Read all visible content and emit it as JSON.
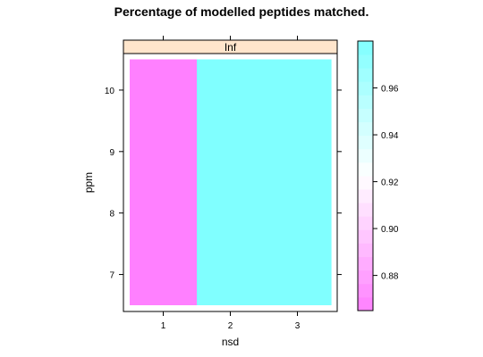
{
  "chart_data": {
    "type": "heatmap",
    "title": "Percentage of modelled peptides matched.",
    "panel_strip": "Inf",
    "xlabel": "nsd",
    "ylabel": "ppm",
    "x_ticks": [
      "1",
      "2",
      "3"
    ],
    "y_ticks": [
      "7",
      "8",
      "9",
      "10"
    ],
    "xlim": [
      0.5,
      3.5
    ],
    "ylim": [
      6.5,
      10.5
    ],
    "cells": [
      {
        "nsd": 1,
        "ppm_range": [
          6.5,
          10.5
        ],
        "value": 0.865
      },
      {
        "nsd": 2,
        "ppm_range": [
          6.5,
          10.5
        ],
        "value": 0.98
      },
      {
        "nsd": 3,
        "ppm_range": [
          6.5,
          10.5
        ],
        "value": 0.98
      }
    ],
    "colorkey": {
      "min": 0.865,
      "max": 0.98,
      "ticks": [
        "0.88",
        "0.90",
        "0.92",
        "0.94",
        "0.96"
      ],
      "low_color": "#ff80ff",
      "high_color": "#80ffff"
    },
    "colors": {
      "strip_fill": "#ffe5cc",
      "low_cell": "#ff80ff",
      "high_cell": "#80ffff"
    }
  }
}
